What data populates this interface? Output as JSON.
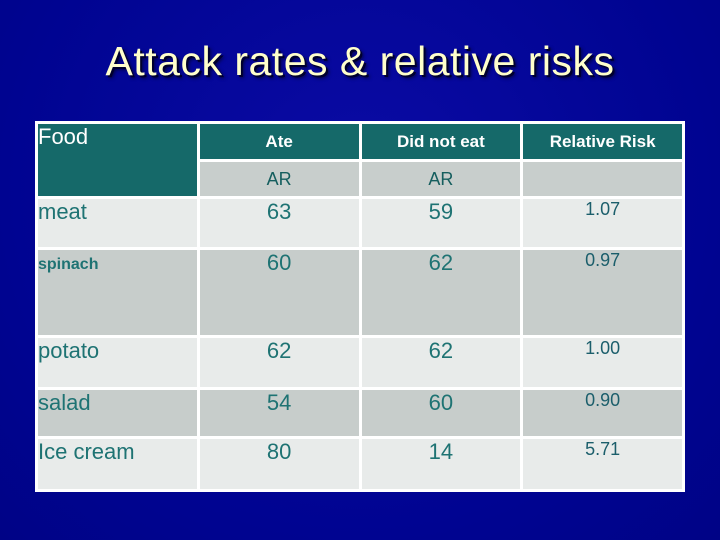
{
  "slide": {
    "title": "Attack rates & relative risks",
    "background_color": "#000697",
    "title_color": "#FFFFCC"
  },
  "table": {
    "header": {
      "food_label": "Food",
      "columns": [
        "Ate",
        "Did not eat",
        "Relative Risk"
      ],
      "subheader": [
        "AR",
        "AR",
        ""
      ]
    },
    "rows": [
      {
        "food": "meat",
        "ate_ar": "63",
        "did_not_eat_ar": "59",
        "relative_risk": "1.07"
      },
      {
        "food": "spinach",
        "ate_ar": "60",
        "did_not_eat_ar": "62",
        "relative_risk": "0.97"
      },
      {
        "food": "potato",
        "ate_ar": "62",
        "did_not_eat_ar": "62",
        "relative_risk": "1.00"
      },
      {
        "food": "salad",
        "ate_ar": "54",
        "did_not_eat_ar": "60",
        "relative_risk": "0.90"
      },
      {
        "food": "Ice cream",
        "ate_ar": "80",
        "did_not_eat_ar": "14",
        "relative_risk": "5.71"
      }
    ],
    "colors": {
      "header_bg": "#156969",
      "header_text": "#FFFFFF",
      "subheader_bg": "#C8CECC",
      "row_light_bg": "#E8EBEA",
      "row_dark_bg": "#C7CDCB",
      "cell_text": "#1E7373",
      "relative_risk_text": "#1B5E6B",
      "divider": "#FFFFFF"
    }
  }
}
